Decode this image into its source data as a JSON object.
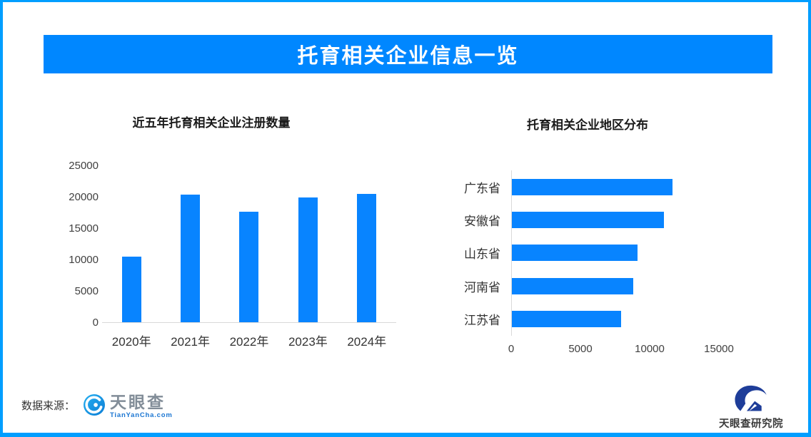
{
  "page": {
    "title": "托育相关企业信息一览",
    "source_label": "数据来源："
  },
  "colors": {
    "frame": "#009eff",
    "banner": "#0087ff",
    "bar": "#0884ff",
    "axis": "#d9d9d9",
    "text": "#333333",
    "tyc-gray": "#828d98",
    "tyc-blue": "#1b76d2",
    "navy": "#1e3d99"
  },
  "logos": {
    "tianyancha": {
      "name": "天眼查",
      "domain": "TianYanCha.com",
      "icon": "tianyancha-eye-icon"
    },
    "research": {
      "name": "天眼查研究院",
      "icon": "research-institute-icon"
    }
  },
  "chart_data": [
    {
      "type": "bar",
      "orientation": "vertical",
      "title": "近五年托育相关企业注册数量",
      "categories": [
        "2020年",
        "2021年",
        "2022年",
        "2023年",
        "2024年"
      ],
      "values": [
        10400,
        20300,
        17600,
        19900,
        20500
      ],
      "xlabel": "",
      "ylabel": "",
      "ylim": [
        0,
        25000
      ],
      "yticks": [
        0,
        5000,
        10000,
        15000,
        20000,
        25000
      ],
      "grid": false,
      "legend": false,
      "bar_color": "#0884ff"
    },
    {
      "type": "bar",
      "orientation": "horizontal",
      "title": "托育相关企业地区分布",
      "categories": [
        "广东省",
        "安徽省",
        "山东省",
        "河南省",
        "江苏省"
      ],
      "values": [
        11600,
        11000,
        9100,
        8800,
        7900
      ],
      "xlabel": "",
      "ylabel": "",
      "xlim": [
        0,
        17500
      ],
      "xticks": [
        0,
        5000,
        10000,
        15000
      ],
      "grid": false,
      "legend": false,
      "bar_color": "#0884ff"
    }
  ]
}
